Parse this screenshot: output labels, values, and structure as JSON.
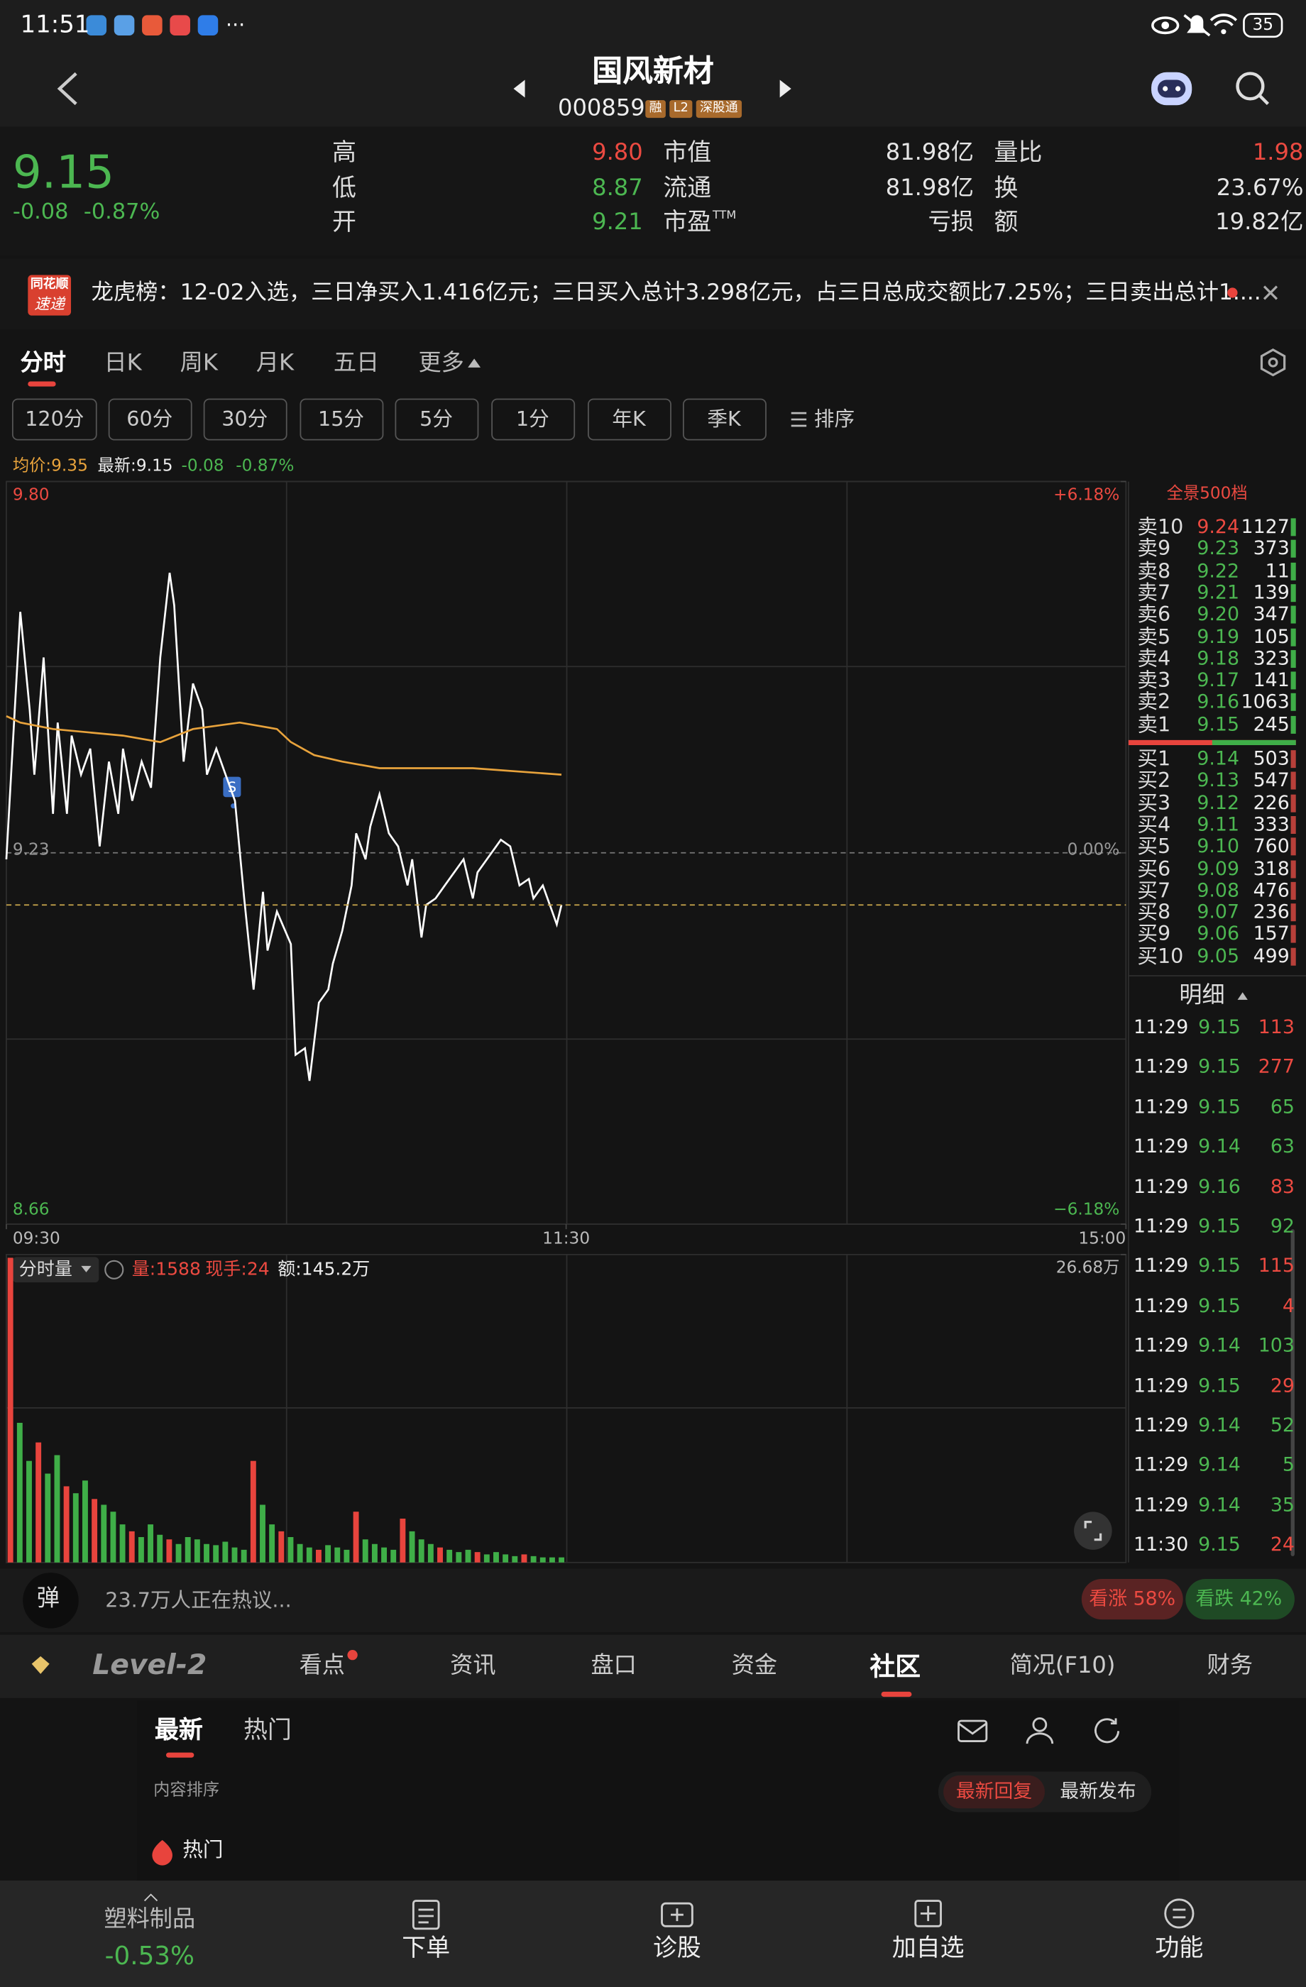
{
  "status": {
    "time": "11:51",
    "more": "···",
    "battery": "35"
  },
  "header": {
    "title": "国风新材",
    "code": "000859",
    "badges": [
      "融",
      "L2",
      "深股通"
    ]
  },
  "quote": {
    "price": "9.15",
    "change": "-0.08",
    "change_pct": "-0.87%",
    "stats": [
      {
        "label": "高",
        "value": "9.80",
        "color": "#ec4a41"
      },
      {
        "label": "市值",
        "value": "81.98亿",
        "color": "#e6e6e6"
      },
      {
        "label": "量比",
        "value": "1.98",
        "color": "#ec4a41"
      },
      {
        "label": "低",
        "value": "8.87",
        "color": "#4cb751"
      },
      {
        "label": "流通",
        "value": "81.98亿",
        "color": "#e6e6e6"
      },
      {
        "label": "换",
        "value": "23.67%",
        "color": "#e6e6e6"
      },
      {
        "label": "开",
        "value": "9.21",
        "color": "#4cb751"
      },
      {
        "label": "市盈",
        "sup": "TTM",
        "value": "亏损",
        "color": "#e6e6e6"
      },
      {
        "label": "额",
        "value": "19.82亿",
        "color": "#e6e6e6"
      }
    ]
  },
  "notice": {
    "badge": [
      "同花顺",
      "速递"
    ],
    "text": "龙虎榜：12-02入选，三日净买入1.416亿元；三日买入总计3.298亿元，占三日总成交额比7.25%；三日卖出总计1...."
  },
  "tabs": {
    "items": [
      "分时",
      "日K",
      "周K",
      "月K",
      "五日",
      "更多"
    ],
    "active": 0
  },
  "periods": {
    "items": [
      "120分",
      "60分",
      "30分",
      "15分",
      "5分",
      "1分",
      "年K",
      "季K"
    ],
    "sort": "排序"
  },
  "chart_data": [
    {
      "type": "line",
      "annotations": [
        "均价:9.35",
        "最新:9.15",
        "-0.08",
        "-0.87%"
      ],
      "xlim": [
        0,
        240
      ],
      "xticks": [
        {
          "value": 0,
          "label": "09:30"
        },
        {
          "value": 120,
          "label": "11:30"
        },
        {
          "value": 240,
          "label": "15:00"
        }
      ],
      "ylim": [
        8.66,
        9.8
      ],
      "yticks": [
        {
          "value": 9.8,
          "label": "9.80"
        },
        {
          "value": 9.23,
          "label": "9.23"
        },
        {
          "value": 8.66,
          "label": "8.66"
        }
      ],
      "y2lim": [
        -6.18,
        6.18
      ],
      "y2ticks": [
        {
          "value": 6.18,
          "label": "+6.18%"
        },
        {
          "value": 0,
          "label": "0.00%"
        },
        {
          "value": -6.18,
          "label": "−6.18%"
        }
      ],
      "series": [
        {
          "color": "#ffffff",
          "x": [
            0,
            3,
            5,
            6,
            8,
            10,
            11,
            13,
            14,
            16,
            18,
            20,
            22,
            24,
            25,
            27,
            29,
            31,
            33,
            35,
            36,
            38,
            40,
            42,
            43,
            45,
            47,
            49,
            51,
            53,
            55,
            56,
            58,
            61,
            62,
            64,
            65,
            67,
            69,
            70,
            72,
            74,
            75,
            77,
            78,
            80,
            82,
            84,
            86,
            87,
            89,
            90,
            92,
            94,
            96,
            98,
            100,
            101,
            103,
            105,
            106,
            108,
            110,
            112,
            113,
            115,
            117,
            118,
            119
          ],
          "values": [
            9.22,
            9.6,
            9.45,
            9.35,
            9.53,
            9.29,
            9.43,
            9.29,
            9.41,
            9.35,
            9.39,
            9.24,
            9.37,
            9.29,
            9.39,
            9.31,
            9.37,
            9.33,
            9.53,
            9.66,
            9.61,
            9.37,
            9.49,
            9.45,
            9.35,
            9.39,
            9.35,
            9.31,
            9.16,
            9.02,
            9.17,
            9.08,
            9.14,
            9.09,
            8.92,
            8.93,
            8.88,
            9.0,
            9.02,
            9.06,
            9.11,
            9.18,
            9.26,
            9.22,
            9.27,
            9.32,
            9.26,
            9.24,
            9.18,
            9.22,
            9.1,
            9.15,
            9.16,
            9.18,
            9.2,
            9.22,
            9.16,
            9.2,
            9.22,
            9.24,
            9.25,
            9.24,
            9.18,
            9.19,
            9.16,
            9.18,
            9.14,
            9.12,
            9.15
          ]
        },
        {
          "color": "#e8a33c",
          "x": [
            0,
            3,
            10,
            25,
            33,
            40,
            50,
            58,
            61,
            66,
            72,
            80,
            100,
            119
          ],
          "values": [
            9.44,
            9.43,
            9.42,
            9.41,
            9.4,
            9.42,
            9.43,
            9.42,
            9.4,
            9.38,
            9.37,
            9.36,
            9.36,
            9.35
          ]
        }
      ]
    },
    {
      "type": "bar",
      "title": "分时量",
      "annotations": [
        "量:1588",
        "现手:24",
        "额:145.2万"
      ],
      "ylim": [
        0,
        266800
      ],
      "yticks": [
        {
          "value": 266800,
          "label": "26.68万"
        }
      ],
      "values": [
        264000,
        121000,
        88000,
        104000,
        77000,
        93000,
        66000,
        60000,
        71000,
        55000,
        50000,
        44000,
        33000,
        27000,
        22000,
        33000,
        24000,
        20000,
        16000,
        22000,
        20000,
        16000,
        15000,
        18000,
        13000,
        11000,
        88000,
        50000,
        33000,
        27000,
        22000,
        16000,
        13000,
        11000,
        15000,
        13000,
        11000,
        44000,
        20000,
        16000,
        13000,
        11000,
        38000,
        27000,
        20000,
        16000,
        13000,
        11000,
        9000,
        11000,
        9000,
        7000,
        9000,
        7000,
        5500,
        7000,
        5500,
        4400,
        4400,
        4400
      ],
      "colors": [
        "#e8443d",
        "#3fae48",
        "#3fae48",
        "#e8443d",
        "#3fae48",
        "#3fae48",
        "#e8443d",
        "#3fae48",
        "#3fae48",
        "#e8443d",
        "#3fae48",
        "#3fae48",
        "#3fae48",
        "#e8443d",
        "#3fae48",
        "#3fae48",
        "#3fae48",
        "#e8443d",
        "#3fae48",
        "#3fae48",
        "#3fae48",
        "#3fae48",
        "#3fae48",
        "#3fae48",
        "#3fae48",
        "#3fae48",
        "#e8443d",
        "#3fae48",
        "#3fae48",
        "#e8443d",
        "#3fae48",
        "#3fae48",
        "#3fae48",
        "#e8443d",
        "#3fae48",
        "#3fae48",
        "#3fae48",
        "#e8443d",
        "#3fae48",
        "#3fae48",
        "#3fae48",
        "#3fae48",
        "#e8443d",
        "#3fae48",
        "#3fae48",
        "#3fae48",
        "#e8443d",
        "#3fae48",
        "#3fae48",
        "#3fae48",
        "#e8443d",
        "#3fae48",
        "#3fae48",
        "#3fae48",
        "#3fae48",
        "#e8443d",
        "#3fae48",
        "#3fae48",
        "#3fae48",
        "#3fae48"
      ]
    }
  ],
  "orderbook": {
    "title": "全景500档",
    "asks": [
      {
        "label": "卖10",
        "price": "9.24",
        "volume": "1127"
      },
      {
        "label": "卖9",
        "price": "9.23",
        "volume": "373"
      },
      {
        "label": "卖8",
        "price": "9.22",
        "volume": "11"
      },
      {
        "label": "卖7",
        "price": "9.21",
        "volume": "139"
      },
      {
        "label": "卖6",
        "price": "9.20",
        "volume": "347"
      },
      {
        "label": "卖5",
        "price": "9.19",
        "volume": "105"
      },
      {
        "label": "卖4",
        "price": "9.18",
        "volume": "323"
      },
      {
        "label": "卖3",
        "price": "9.17",
        "volume": "141"
      },
      {
        "label": "卖2",
        "price": "9.16",
        "volume": "1063"
      },
      {
        "label": "卖1",
        "price": "9.15",
        "volume": "245"
      }
    ],
    "bids": [
      {
        "label": "买1",
        "price": "9.14",
        "volume": "503"
      },
      {
        "label": "买2",
        "price": "9.13",
        "volume": "547"
      },
      {
        "label": "买3",
        "price": "9.12",
        "volume": "226"
      },
      {
        "label": "买4",
        "price": "9.11",
        "volume": "333"
      },
      {
        "label": "买5",
        "price": "9.10",
        "volume": "760"
      },
      {
        "label": "买6",
        "price": "9.09",
        "volume": "318"
      },
      {
        "label": "买7",
        "price": "9.08",
        "volume": "476"
      },
      {
        "label": "买8",
        "price": "9.07",
        "volume": "236"
      },
      {
        "label": "买9",
        "price": "9.06",
        "volume": "157"
      },
      {
        "label": "买10",
        "price": "9.05",
        "volume": "499"
      }
    ]
  },
  "detail": {
    "title": "明细",
    "rows": [
      {
        "time": "11:29",
        "price": "9.15",
        "volume": "113",
        "color": "#ec4a41"
      },
      {
        "time": "11:29",
        "price": "9.15",
        "volume": "277",
        "color": "#ec4a41"
      },
      {
        "time": "11:29",
        "price": "9.15",
        "volume": "65",
        "color": "#4cb751"
      },
      {
        "time": "11:29",
        "price": "9.14",
        "volume": "63",
        "color": "#4cb751"
      },
      {
        "time": "11:29",
        "price": "9.16",
        "volume": "83",
        "color": "#ec4a41"
      },
      {
        "time": "11:29",
        "price": "9.15",
        "volume": "92",
        "color": "#4cb751"
      },
      {
        "time": "11:29",
        "price": "9.15",
        "volume": "115",
        "color": "#ec4a41"
      },
      {
        "time": "11:29",
        "price": "9.15",
        "volume": "4",
        "color": "#ec4a41"
      },
      {
        "time": "11:29",
        "price": "9.14",
        "volume": "103",
        "color": "#4cb751"
      },
      {
        "time": "11:29",
        "price": "9.15",
        "volume": "29",
        "color": "#ec4a41"
      },
      {
        "time": "11:29",
        "price": "9.14",
        "volume": "52",
        "color": "#4cb751"
      },
      {
        "time": "11:29",
        "price": "9.14",
        "volume": "5",
        "color": "#4cb751"
      },
      {
        "time": "11:29",
        "price": "9.14",
        "volume": "35",
        "color": "#4cb751"
      },
      {
        "time": "11:30",
        "price": "9.15",
        "volume": "24",
        "color": "#ec4a41"
      }
    ]
  },
  "discussion": {
    "icon": "弹",
    "text": "23.7万人正在热议...",
    "bull": "看涨 58%",
    "bear": "看跌 42%"
  },
  "bottom_tabs": {
    "items": [
      "Level-2",
      "看点",
      "资讯",
      "盘口",
      "资金",
      "社区",
      "简况(F10)",
      "财务"
    ],
    "active": 5
  },
  "community": {
    "tabs": [
      "最新",
      "热门"
    ],
    "sort_label": "内容排序",
    "sort_options": [
      "最新回复",
      "最新发布"
    ],
    "section": "热门"
  },
  "footer": {
    "sector": "塑料制品",
    "sector_pct": "-0.53%",
    "buttons": [
      "下单",
      "诊股",
      "加自选",
      "功能"
    ]
  }
}
